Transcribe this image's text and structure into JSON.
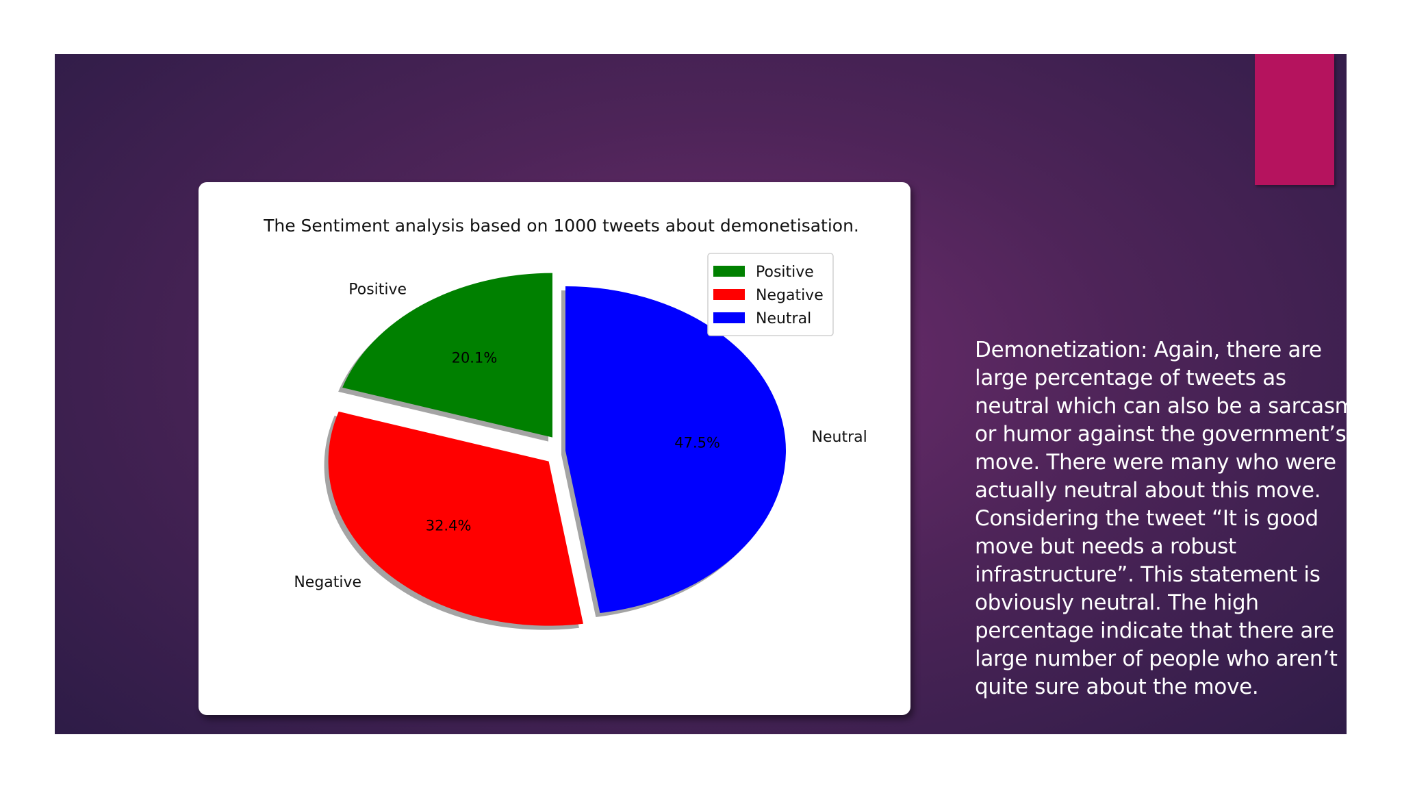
{
  "slide": {
    "accent_color": "#b5135e",
    "body_text": "Demonetization: Again, there are large percentage of tweets as neutral which can also be a sarcasm or humor against the government’s move. There were many who were actually neutral about this move. Considering the tweet “It is good move but needs a robust infrastructure”. This statement is obviously neutral. The high percentage indicate that there are large number of people who aren’t quite sure about the move."
  },
  "chart_data": {
    "type": "pie",
    "title": "The Sentiment analysis based on 1000 tweets about demonetisation.",
    "categories": [
      "Positive",
      "Negative",
      "Neutral"
    ],
    "values": [
      20.1,
      32.4,
      47.5
    ],
    "value_labels": [
      "20.1%",
      "32.4%",
      "47.5%"
    ],
    "colors": [
      "#008000",
      "#ff0000",
      "#0000ff"
    ],
    "exploded": [
      "Positive",
      "Negative"
    ],
    "shadow": true,
    "legend": {
      "placement": "upper-right",
      "entries": [
        "Positive",
        "Negative",
        "Neutral"
      ]
    }
  }
}
